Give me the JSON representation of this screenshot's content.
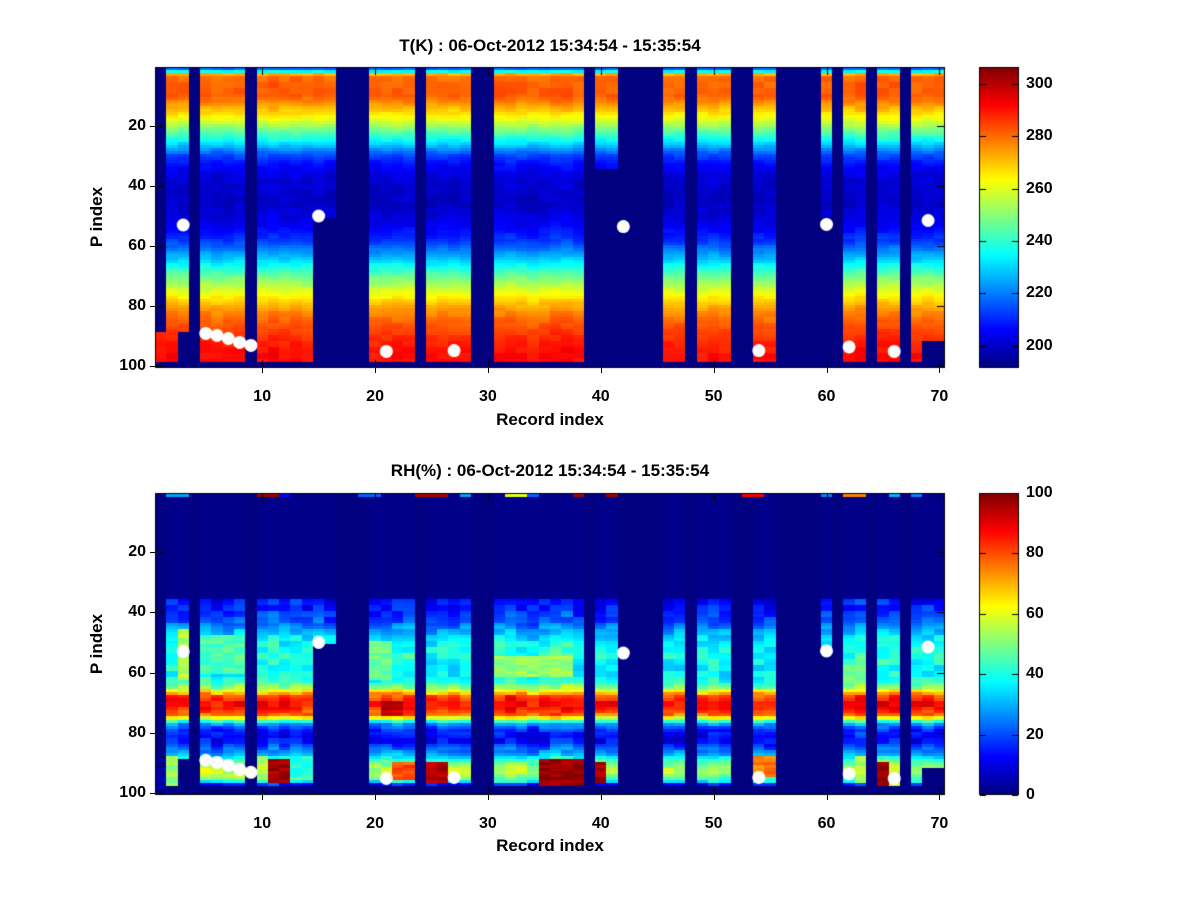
{
  "figure": {
    "background": "#ffffff",
    "text_color": "#000000",
    "missing_color": "#000080"
  },
  "chart_data": [
    {
      "type": "heatmap",
      "title": "T(K) : 06-Oct-2012 15:34:54 - 15:35:54",
      "xlabel": "Record index",
      "ylabel": "P index",
      "x_ticks": [
        10,
        20,
        30,
        40,
        50,
        60,
        70
      ],
      "y_ticks": [
        20,
        40,
        60,
        80,
        100
      ],
      "x_range": [
        0.5,
        70.5
      ],
      "y_range": [
        0.5,
        100.5
      ],
      "y_axis_reversed": true,
      "colormap": "jet",
      "colorbar": {
        "ticks": [
          200,
          220,
          240,
          260,
          280,
          300
        ],
        "vmin": 191.5,
        "vmax": 306.5
      },
      "default_pmax": 98,
      "value_profile": [
        [
          1,
          218
        ],
        [
          2,
          235
        ],
        [
          3,
          273
        ],
        [
          4,
          280
        ],
        [
          6,
          281.5
        ],
        [
          10,
          282
        ],
        [
          12,
          278
        ],
        [
          14,
          272
        ],
        [
          16,
          267
        ],
        [
          18,
          261
        ],
        [
          20,
          254
        ],
        [
          22,
          246
        ],
        [
          24,
          239
        ],
        [
          26,
          231
        ],
        [
          28,
          222
        ],
        [
          30,
          214
        ],
        [
          33,
          207
        ],
        [
          36,
          203
        ],
        [
          40,
          200.5
        ],
        [
          46,
          199.5
        ],
        [
          50,
          202
        ],
        [
          54,
          206
        ],
        [
          58,
          212
        ],
        [
          61,
          220
        ],
        [
          64,
          228
        ],
        [
          67,
          238
        ],
        [
          70,
          247
        ],
        [
          73,
          255
        ],
        [
          76,
          263
        ],
        [
          79,
          271
        ],
        [
          82,
          277
        ],
        [
          85,
          281
        ],
        [
          88,
          285
        ],
        [
          92,
          289
        ],
        [
          96,
          291
        ],
        [
          100,
          292
        ]
      ],
      "noise": {
        "amp": 4,
        "record_amp": 2.5,
        "block": 2
      },
      "segments": [
        {
          "from": 1,
          "to": 1,
          "pmin": 89,
          "pmax": 98
        },
        {
          "from": 2,
          "to": 2
        },
        {
          "from": 3,
          "to": 3,
          "pmax": 88
        },
        {
          "from": 5,
          "to": 8
        },
        {
          "from": 10,
          "to": 14
        },
        {
          "from": 15,
          "to": 16,
          "pmax": 50
        },
        {
          "from": 20,
          "to": 23
        },
        {
          "from": 25,
          "to": 28
        },
        {
          "from": 31,
          "to": 38
        },
        {
          "from": 40,
          "to": 41,
          "pmax": 34
        },
        {
          "from": 46,
          "to": 47
        },
        {
          "from": 49,
          "to": 51
        },
        {
          "from": 54,
          "to": 55
        },
        {
          "from": 60,
          "to": 60,
          "pmax": 50
        },
        {
          "from": 62,
          "to": 63
        },
        {
          "from": 65,
          "to": 66
        },
        {
          "from": 68,
          "to": 68
        },
        {
          "from": 69,
          "to": 70,
          "pmax": 91
        }
      ],
      "hotspots": [],
      "top_marks": [],
      "markers": {
        "shape": "circle",
        "color": "#ffffff",
        "radius": 6.5,
        "points": [
          [
            3,
            53
          ],
          [
            5,
            89
          ],
          [
            6,
            89.7
          ],
          [
            7,
            90.7
          ],
          [
            8,
            92
          ],
          [
            9,
            93
          ],
          [
            15,
            50
          ],
          [
            21,
            95
          ],
          [
            27,
            94.7
          ],
          [
            42,
            53.5
          ],
          [
            54,
            94.7
          ],
          [
            60,
            52.8
          ],
          [
            62,
            93.5
          ],
          [
            66,
            95
          ],
          [
            69,
            51.5
          ]
        ]
      }
    },
    {
      "type": "heatmap",
      "title": "RH(%) : 06-Oct-2012 15:34:54 - 15:35:54",
      "xlabel": "Record index",
      "ylabel": "P index",
      "x_ticks": [
        10,
        20,
        30,
        40,
        50,
        60,
        70
      ],
      "y_ticks": [
        20,
        40,
        60,
        80,
        100
      ],
      "x_range": [
        0.5,
        70.5
      ],
      "y_range": [
        0.5,
        100.5
      ],
      "y_axis_reversed": true,
      "colormap": "jet",
      "colorbar": {
        "ticks": [
          0,
          20,
          40,
          60,
          80,
          100
        ],
        "vmin": 0,
        "vmax": 100
      },
      "default_pmax": 97,
      "value_profile": [
        [
          1,
          1
        ],
        [
          34,
          1
        ],
        [
          35,
          2
        ],
        [
          36,
          14
        ],
        [
          38,
          16
        ],
        [
          40,
          17
        ],
        [
          43,
          21
        ],
        [
          46,
          30
        ],
        [
          49,
          36
        ],
        [
          52,
          40
        ],
        [
          55,
          41
        ],
        [
          58,
          38
        ],
        [
          61,
          38
        ],
        [
          63,
          42
        ],
        [
          65,
          52
        ],
        [
          66,
          62
        ],
        [
          67,
          72
        ],
        [
          68,
          81
        ],
        [
          70,
          87
        ],
        [
          72,
          86
        ],
        [
          74,
          78
        ],
        [
          75,
          62
        ],
        [
          76,
          42
        ],
        [
          77,
          28
        ],
        [
          79,
          17
        ],
        [
          81,
          13
        ],
        [
          83,
          14
        ],
        [
          85,
          22
        ],
        [
          87,
          30
        ],
        [
          89,
          45
        ],
        [
          91,
          55
        ],
        [
          93,
          58
        ],
        [
          95,
          48
        ],
        [
          96,
          38
        ],
        [
          97,
          15
        ],
        [
          98,
          2
        ],
        [
          100,
          2
        ]
      ],
      "noise": {
        "amp": 11,
        "record_amp": 6,
        "block": 2
      },
      "segments": [
        {
          "from": 1,
          "to": 1,
          "pmin": 89,
          "pmax": 98
        },
        {
          "from": 2,
          "to": 2
        },
        {
          "from": 3,
          "to": 3,
          "pmax": 88
        },
        {
          "from": 5,
          "to": 8
        },
        {
          "from": 10,
          "to": 14
        },
        {
          "from": 15,
          "to": 16,
          "pmax": 50
        },
        {
          "from": 20,
          "to": 23
        },
        {
          "from": 25,
          "to": 28
        },
        {
          "from": 31,
          "to": 38
        },
        {
          "from": 40,
          "to": 41
        },
        {
          "from": 46,
          "to": 47
        },
        {
          "from": 49,
          "to": 51
        },
        {
          "from": 54,
          "to": 55
        },
        {
          "from": 60,
          "to": 60,
          "pmax": 53
        },
        {
          "from": 62,
          "to": 63
        },
        {
          "from": 65,
          "to": 66
        },
        {
          "from": 68,
          "to": 68
        },
        {
          "from": 69,
          "to": 70,
          "pmax": 91
        }
      ],
      "hotspots": [
        {
          "records": [
            2,
            2
          ],
          "p": [
            88,
            97
          ],
          "value": 52
        },
        {
          "records": [
            3,
            3
          ],
          "p": [
            46,
            62
          ],
          "value": 55
        },
        {
          "records": [
            5,
            8
          ],
          "p": [
            48,
            60
          ],
          "value": 45
        },
        {
          "records": [
            10,
            10
          ],
          "p": [
            88,
            95
          ],
          "value": 55
        },
        {
          "records": [
            11,
            12
          ],
          "p": [
            89,
            96
          ],
          "value": 97
        },
        {
          "records": [
            13,
            14
          ],
          "p": [
            88,
            94
          ],
          "value": 42
        },
        {
          "records": [
            20,
            21
          ],
          "p": [
            50,
            62
          ],
          "value": 48
        },
        {
          "records": [
            21,
            22
          ],
          "p": [
            70,
            74
          ],
          "value": 93
        },
        {
          "records": [
            22,
            23
          ],
          "p": [
            90,
            95
          ],
          "value": 80
        },
        {
          "records": [
            25,
            26
          ],
          "p": [
            90,
            96
          ],
          "value": 95
        },
        {
          "records": [
            31,
            37
          ],
          "p": [
            55,
            61
          ],
          "value": 52
        },
        {
          "records": [
            35,
            38
          ],
          "p": [
            89,
            97
          ],
          "value": 98
        },
        {
          "records": [
            40,
            40
          ],
          "p": [
            90,
            96
          ],
          "value": 96
        },
        {
          "records": [
            54,
            55
          ],
          "p": [
            88,
            94
          ],
          "value": 75
        },
        {
          "records": [
            62,
            63
          ],
          "p": [
            58,
            63
          ],
          "value": 50
        },
        {
          "records": [
            63,
            63
          ],
          "p": [
            88,
            96
          ],
          "value": 55
        },
        {
          "records": [
            65,
            65
          ],
          "p": [
            90,
            97
          ],
          "value": 97
        },
        {
          "records": [
            66,
            66
          ],
          "p": [
            92,
            97
          ],
          "value": 58
        },
        {
          "records": [
            1,
            1
          ],
          "p": [
            85,
            98
          ],
          "value": 3
        }
      ],
      "top_marks": [
        [
          2,
          28
        ],
        [
          3,
          28
        ],
        [
          10,
          97
        ],
        [
          11,
          97
        ],
        [
          12,
          12
        ],
        [
          19,
          22
        ],
        [
          20,
          22
        ],
        [
          24,
          96
        ],
        [
          25,
          96
        ],
        [
          26,
          96
        ],
        [
          28,
          28
        ],
        [
          32,
          60
        ],
        [
          33,
          60
        ],
        [
          34,
          22
        ],
        [
          38,
          96
        ],
        [
          41,
          97
        ],
        [
          53,
          88
        ],
        [
          54,
          88
        ],
        [
          60,
          25
        ],
        [
          62,
          75
        ],
        [
          63,
          75
        ],
        [
          66,
          30
        ],
        [
          68,
          25
        ]
      ],
      "markers": {
        "shape": "circle",
        "color": "#ffffff",
        "radius": 6.5,
        "points": [
          [
            3,
            53
          ],
          [
            5,
            89
          ],
          [
            6,
            89.7
          ],
          [
            7,
            90.7
          ],
          [
            8,
            92
          ],
          [
            9,
            93
          ],
          [
            15,
            50
          ],
          [
            21,
            95
          ],
          [
            27,
            94.7
          ],
          [
            42,
            53.5
          ],
          [
            54,
            94.7
          ],
          [
            60,
            52.8
          ],
          [
            62,
            93.5
          ],
          [
            66,
            95
          ],
          [
            69,
            51.5
          ]
        ]
      }
    }
  ]
}
